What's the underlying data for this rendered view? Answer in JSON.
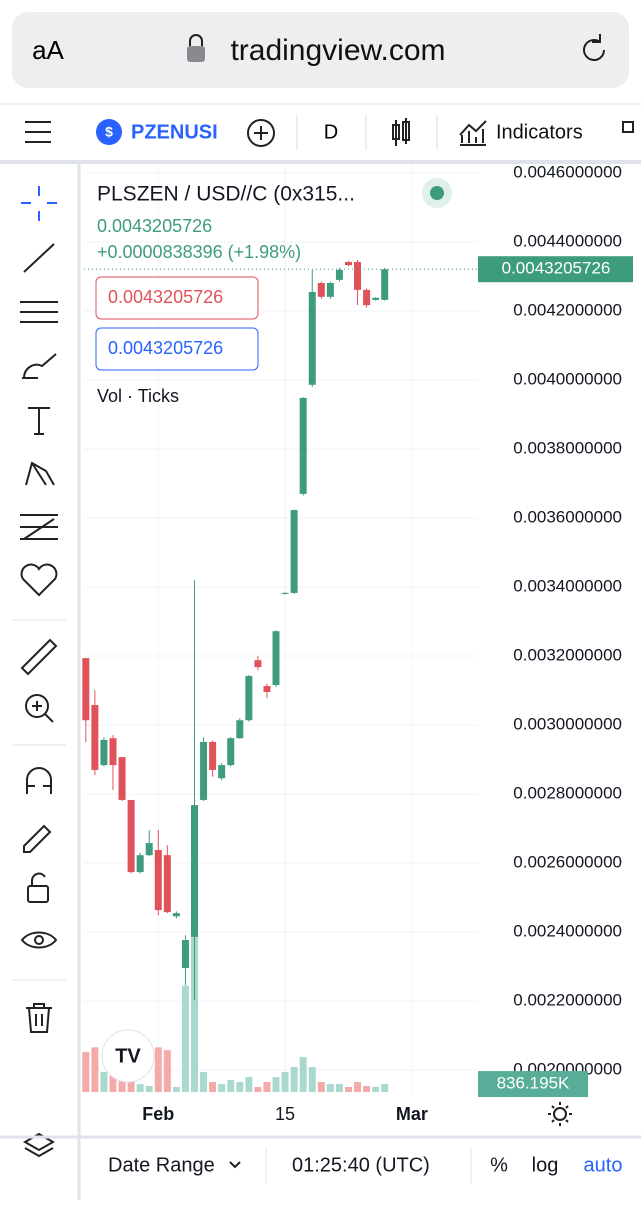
{
  "browser": {
    "text_size": "aA",
    "url": "tradingview.com"
  },
  "toolbar": {
    "symbol": "PZENUSI",
    "interval": "D",
    "indicators": "Indicators"
  },
  "legend": {
    "title": "PLSZEN / USD//C (0x315...",
    "last": "0.0043205726",
    "change": "+0.0000838396 (+1.98%)",
    "sell": "0.0043205726",
    "buy": "0.0043205726",
    "studies": "Vol · Ticks"
  },
  "bottom_bar": {
    "date_range": "Date Range",
    "time": "01:25:40 (UTC)",
    "percent": "%",
    "log": "log",
    "auto": "auto"
  },
  "chart_data": {
    "type": "candlestick",
    "x": [
      24,
      25,
      26,
      27,
      28,
      29,
      30,
      31,
      32,
      33,
      34,
      35,
      36,
      37,
      38,
      39,
      40,
      41,
      42,
      43,
      44,
      45,
      46,
      47,
      48,
      49,
      50,
      51,
      52,
      53,
      54,
      55,
      56,
      57
    ],
    "open": [
      0.003194,
      0.003058,
      0.002884,
      0.002962,
      0.002907,
      0.002783,
      0.002574,
      0.002623,
      0.002638,
      0.002623,
      0.002446,
      0.002296,
      0.002386,
      0.002783,
      0.002951,
      0.002846,
      0.002884,
      0.002962,
      0.003014,
      0.003188,
      0.003113,
      0.003116,
      0.00338,
      0.003383,
      0.00367,
      0.003986,
      0.004281,
      0.004241,
      0.00429,
      0.004342,
      0.004342,
      0.004261,
      0.004232,
      0.004232
    ],
    "high": [
      0.003194,
      0.003101,
      0.002965,
      0.002971,
      0.002907,
      0.002783,
      0.00263,
      0.002696,
      0.002696,
      0.002652,
      0.00246,
      0.002391,
      0.00342,
      0.002965,
      0.002955,
      0.00289,
      0.002965,
      0.00302,
      0.003145,
      0.0032,
      0.00312,
      0.003275,
      0.003385,
      0.003625,
      0.00395,
      0.004319,
      0.004285,
      0.004285,
      0.004325,
      0.004345,
      0.004348,
      0.004265,
      0.00424,
      0.004325
    ],
    "low": [
      0.002951,
      0.002855,
      0.00288,
      0.002812,
      0.00278,
      0.00257,
      0.00257,
      0.00262,
      0.002449,
      0.002455,
      0.00244,
      0.002246,
      0.002203,
      0.00278,
      0.00285,
      0.00284,
      0.00288,
      0.00296,
      0.00301,
      0.00316,
      0.003078,
      0.00311,
      0.003378,
      0.00338,
      0.003665,
      0.00398,
      0.004235,
      0.004235,
      0.004285,
      0.00433,
      0.004217,
      0.00421,
      0.00423,
      0.00423
    ],
    "close": [
      0.003014,
      0.00287,
      0.002957,
      0.002884,
      0.002783,
      0.002574,
      0.002623,
      0.002658,
      0.002464,
      0.002458,
      0.002455,
      0.002377,
      0.002768,
      0.002951,
      0.00287,
      0.002884,
      0.002962,
      0.003014,
      0.003142,
      0.003168,
      0.003096,
      0.003272,
      0.003383,
      0.003623,
      0.003948,
      0.004255,
      0.004241,
      0.004281,
      0.004319,
      0.004333,
      0.004261,
      0.004217,
      0.004238,
      0.004321
    ],
    "volume": [
      4200000,
      4700000,
      2100000,
      1900000,
      3150000,
      1260000,
      840000,
      630000,
      4700000,
      4400000,
      525000,
      11200000,
      16300000,
      2100000,
      1050000,
      840000,
      1260000,
      1050000,
      1575000,
      525000,
      1050000,
      1575000,
      2100000,
      2625000,
      3675000,
      2625000,
      1050000,
      840000,
      840000,
      525000,
      1050000,
      630000,
      525000,
      836195
    ],
    "volume_label": "836.195K",
    "xlim": [
      23.8,
      67.3
    ],
    "ylim": [
      0.001928,
      0.004623
    ],
    "y2lim": [
      0,
      20000000
    ],
    "yticks": [
      {
        "value": 0.0046,
        "label": "0.0046000000"
      },
      {
        "value": 0.0044,
        "label": "0.0044000000"
      },
      {
        "value": 0.0042,
        "label": "0.0042000000"
      },
      {
        "value": 0.004,
        "label": "0.0040000000"
      },
      {
        "value": 0.0038,
        "label": "0.0038000000"
      },
      {
        "value": 0.0036,
        "label": "0.0036000000"
      },
      {
        "value": 0.0034,
        "label": "0.0034000000"
      },
      {
        "value": 0.0032,
        "label": "0.0032000000"
      },
      {
        "value": 0.003,
        "label": "0.0030000000"
      },
      {
        "value": 0.0028,
        "label": "0.0028000000"
      },
      {
        "value": 0.0026,
        "label": "0.0026000000"
      },
      {
        "value": 0.0024,
        "label": "0.0024000000"
      },
      {
        "value": 0.0022,
        "label": "0.0022000000"
      },
      {
        "value": 0.002,
        "label": "0.0020000000"
      }
    ],
    "xticks": [
      {
        "value": 32,
        "label": "Feb"
      },
      {
        "value": 46,
        "label": "15"
      },
      {
        "value": 60,
        "label": "Mar"
      }
    ],
    "grid": true,
    "up_color": "#3e9c7e",
    "down_color": "#e0525a",
    "up_volume_color": "#a9d9ce",
    "down_volume_color": "#f3aaa9"
  }
}
